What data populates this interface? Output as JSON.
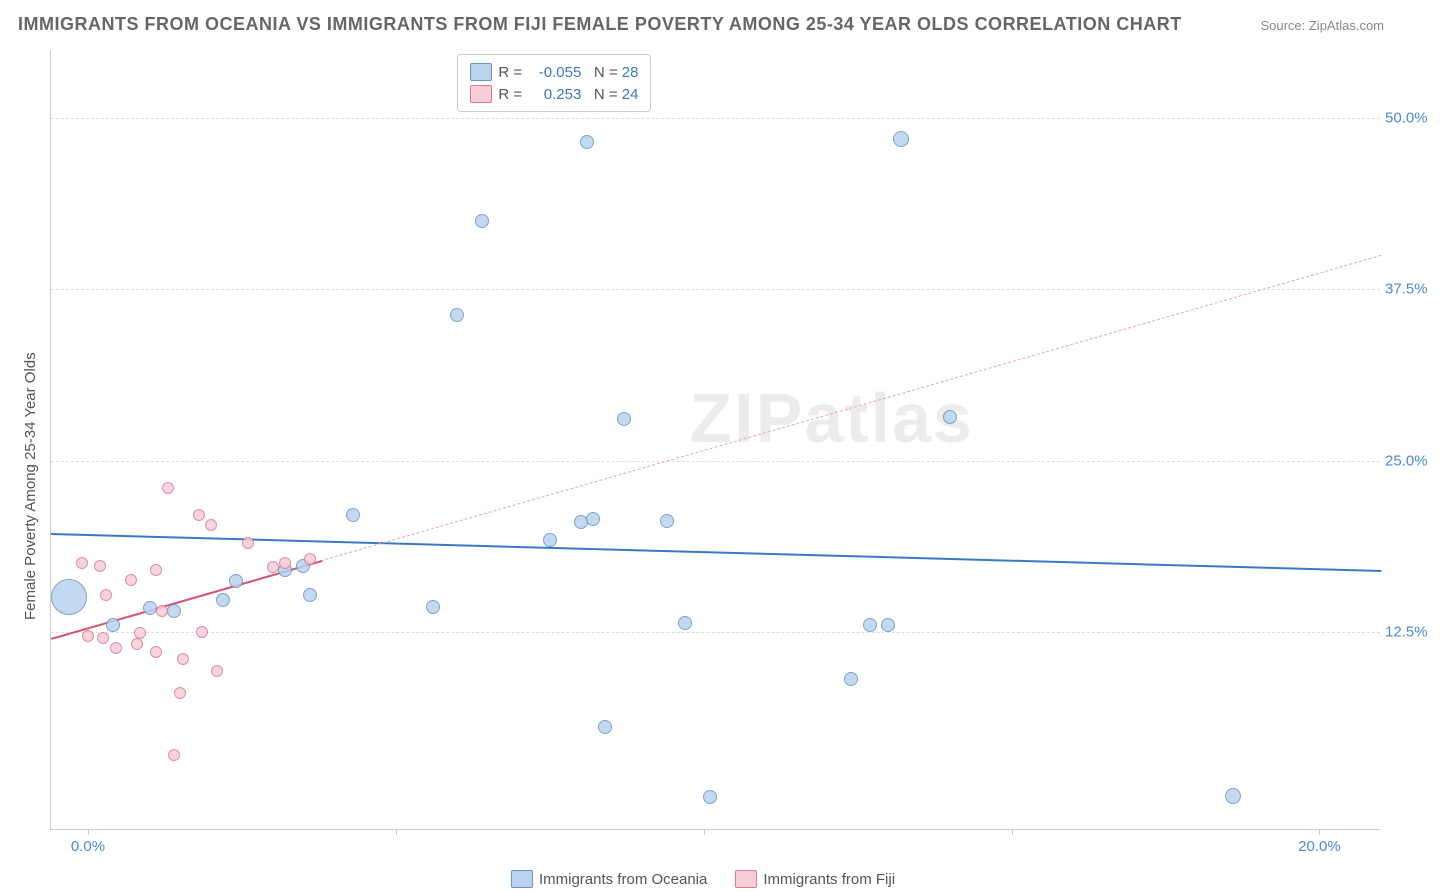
{
  "title": "IMMIGRANTS FROM OCEANIA VS IMMIGRANTS FROM FIJI FEMALE POVERTY AMONG 25-34 YEAR OLDS CORRELATION CHART",
  "source": "Source: ZipAtlas.com",
  "y_axis_label": "Female Poverty Among 25-34 Year Olds",
  "watermark": "ZIPatlas",
  "chart": {
    "type": "scatter",
    "x_domain": [
      -0.6,
      21.0
    ],
    "y_domain": [
      -2.0,
      55.0
    ],
    "x_ticks": [
      0.0,
      5.0,
      10.0,
      15.0,
      20.0
    ],
    "x_tick_labels": [
      "0.0%",
      "",
      "",
      "",
      "20.0%"
    ],
    "x_label_color": "#4a8ad4",
    "y_ticks": [
      12.5,
      25.0,
      37.5,
      50.0
    ],
    "y_tick_labels": [
      "12.5%",
      "25.0%",
      "37.5%",
      "50.0%"
    ],
    "y_label_color": "#4a8ad4",
    "grid_color": "#dddddd",
    "background": "#ffffff"
  },
  "series": [
    {
      "name": "Immigrants from Oceania",
      "fill": "#b9d3ee",
      "stroke": "#6795c6",
      "R": "-0.055",
      "N": "28",
      "trend": {
        "x1": -0.6,
        "y1": 19.7,
        "x2": 21.0,
        "y2": 17.0,
        "color": "#3b78c3",
        "width": 2.5,
        "dash": "none"
      },
      "points": [
        {
          "x": -0.3,
          "y": 15.0,
          "r": 18
        },
        {
          "x": 0.4,
          "y": 13.0,
          "r": 7
        },
        {
          "x": 1.0,
          "y": 14.2,
          "r": 7
        },
        {
          "x": 1.4,
          "y": 14.0,
          "r": 7
        },
        {
          "x": 2.2,
          "y": 14.8,
          "r": 7
        },
        {
          "x": 2.4,
          "y": 16.2,
          "r": 7
        },
        {
          "x": 3.2,
          "y": 17.0,
          "r": 7
        },
        {
          "x": 3.5,
          "y": 17.3,
          "r": 7
        },
        {
          "x": 3.6,
          "y": 15.2,
          "r": 7
        },
        {
          "x": 4.3,
          "y": 21.0,
          "r": 7
        },
        {
          "x": 5.6,
          "y": 14.3,
          "r": 7
        },
        {
          "x": 6.0,
          "y": 35.6,
          "r": 7
        },
        {
          "x": 6.4,
          "y": 42.5,
          "r": 7
        },
        {
          "x": 7.5,
          "y": 19.2,
          "r": 7
        },
        {
          "x": 8.0,
          "y": 20.5,
          "r": 7
        },
        {
          "x": 8.2,
          "y": 20.7,
          "r": 7
        },
        {
          "x": 8.1,
          "y": 48.3,
          "r": 7
        },
        {
          "x": 8.4,
          "y": 5.5,
          "r": 7
        },
        {
          "x": 8.7,
          "y": 28.0,
          "r": 7
        },
        {
          "x": 9.4,
          "y": 20.6,
          "r": 7
        },
        {
          "x": 9.7,
          "y": 13.1,
          "r": 7
        },
        {
          "x": 10.1,
          "y": 0.4,
          "r": 7
        },
        {
          "x": 12.4,
          "y": 9.0,
          "r": 7
        },
        {
          "x": 12.7,
          "y": 13.0,
          "r": 7
        },
        {
          "x": 13.0,
          "y": 13.0,
          "r": 7
        },
        {
          "x": 14.0,
          "y": 28.2,
          "r": 7
        },
        {
          "x": 13.2,
          "y": 48.5,
          "r": 8
        },
        {
          "x": 18.6,
          "y": 0.5,
          "r": 8
        }
      ]
    },
    {
      "name": "Immigrants from Fiji",
      "fill": "#f7cdd6",
      "stroke": "#d97b93",
      "R": "0.253",
      "N": "24",
      "trend": {
        "x1": -0.6,
        "y1": 12.0,
        "x2": 21.0,
        "y2": 40.0,
        "color": "#e6a6b5",
        "width": 1.2,
        "dash": "5,4"
      },
      "trend_solid": {
        "x1": -0.6,
        "y1": 12.0,
        "x2": 3.8,
        "y2": 17.7,
        "color": "#d6546f",
        "width": 2.5
      },
      "points": [
        {
          "x": -0.1,
          "y": 17.5,
          "r": 6
        },
        {
          "x": 0.2,
          "y": 17.3,
          "r": 6
        },
        {
          "x": 0.3,
          "y": 15.2,
          "r": 6
        },
        {
          "x": 0.0,
          "y": 12.2,
          "r": 6
        },
        {
          "x": 0.25,
          "y": 12.0,
          "r": 6
        },
        {
          "x": 0.45,
          "y": 11.3,
          "r": 6
        },
        {
          "x": 0.7,
          "y": 16.3,
          "r": 6
        },
        {
          "x": 0.8,
          "y": 11.6,
          "r": 6
        },
        {
          "x": 0.85,
          "y": 12.4,
          "r": 6
        },
        {
          "x": 1.1,
          "y": 17.0,
          "r": 6
        },
        {
          "x": 1.2,
          "y": 14.0,
          "r": 6
        },
        {
          "x": 1.1,
          "y": 11.0,
          "r": 6
        },
        {
          "x": 1.3,
          "y": 23.0,
          "r": 6
        },
        {
          "x": 1.4,
          "y": 3.5,
          "r": 6
        },
        {
          "x": 1.5,
          "y": 8.0,
          "r": 6
        },
        {
          "x": 1.55,
          "y": 10.5,
          "r": 6
        },
        {
          "x": 1.8,
          "y": 21.0,
          "r": 6
        },
        {
          "x": 1.85,
          "y": 12.5,
          "r": 6
        },
        {
          "x": 2.0,
          "y": 20.3,
          "r": 6
        },
        {
          "x": 2.1,
          "y": 9.6,
          "r": 6
        },
        {
          "x": 2.6,
          "y": 19.0,
          "r": 6
        },
        {
          "x": 3.0,
          "y": 17.2,
          "r": 6
        },
        {
          "x": 3.2,
          "y": 17.5,
          "r": 6
        },
        {
          "x": 3.6,
          "y": 17.8,
          "r": 6
        }
      ]
    }
  ],
  "legend_top": {
    "r_label": "R =",
    "n_label": "N ="
  },
  "legend_bottom": [
    "Immigrants from Oceania",
    "Immigrants from Fiji"
  ]
}
